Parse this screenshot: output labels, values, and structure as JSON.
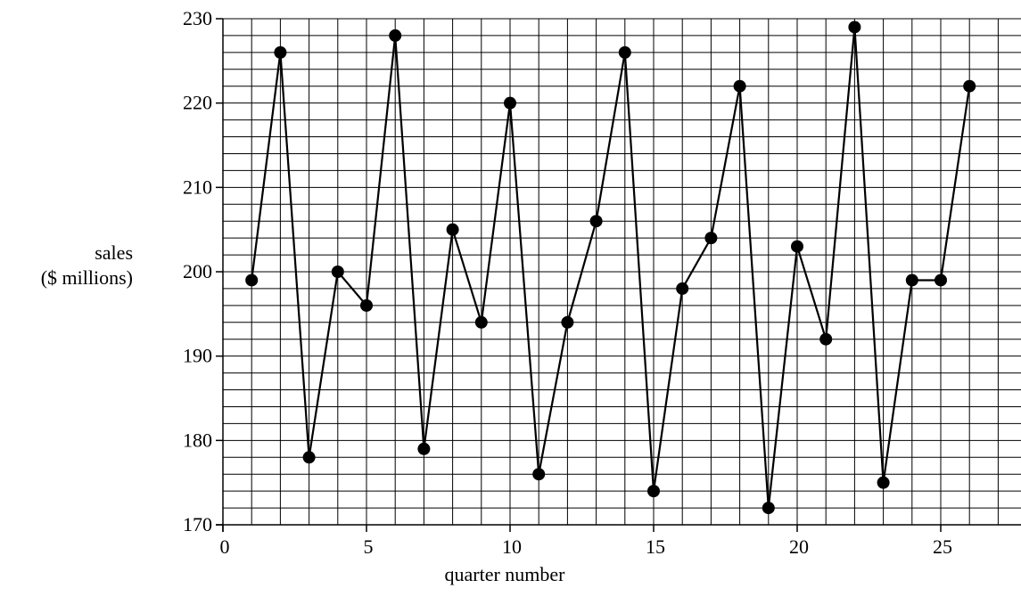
{
  "chart_data": {
    "type": "line",
    "title": "",
    "xlabel": "quarter number",
    "ylabel_lines": [
      "sales",
      "($ millions)"
    ],
    "xlim": [
      0,
      27.8
    ],
    "ylim": [
      170,
      230
    ],
    "x_ticks": [
      0,
      5,
      10,
      15,
      20,
      25
    ],
    "y_ticks": [
      170,
      180,
      190,
      200,
      210,
      220,
      230
    ],
    "grid": true,
    "grid_minor_x": 1,
    "grid_minor_y": 2,
    "legend": "none",
    "series": [
      {
        "x": [
          1,
          2,
          3,
          4,
          5,
          6,
          7,
          8,
          9,
          10,
          11,
          12,
          13,
          14,
          15,
          16,
          17,
          18,
          19,
          20,
          21,
          22,
          23,
          24,
          25,
          26
        ],
        "values": [
          199,
          226,
          178,
          200,
          196,
          228,
          179,
          205,
          194,
          220,
          176,
          194,
          206,
          226,
          174,
          198,
          204,
          222,
          172,
          203,
          192,
          229,
          175,
          199,
          199,
          222
        ],
        "color": "#000000",
        "marker": "filled-circle"
      }
    ]
  }
}
